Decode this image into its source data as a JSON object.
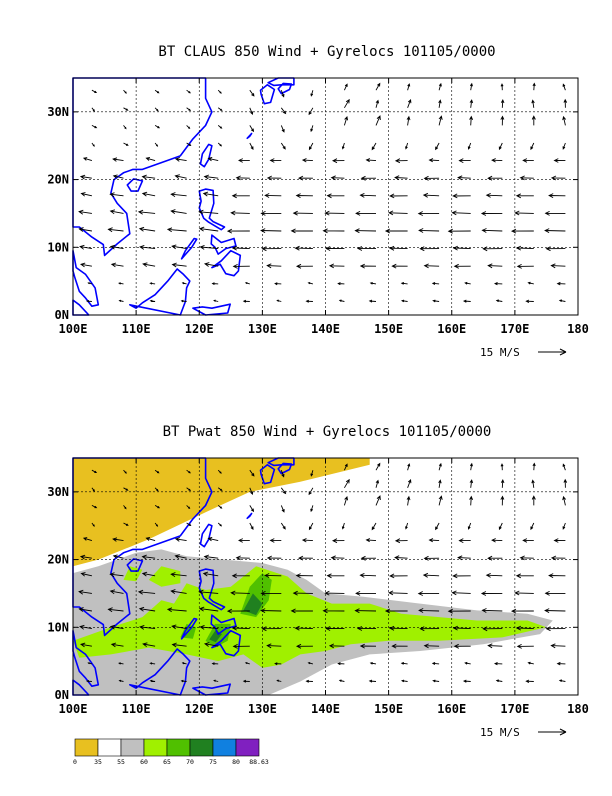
{
  "chart_data": [
    {
      "type": "vector_field_map",
      "title": "BT CLAUS 850 Wind + Gyrelocs 101105/0000",
      "x_ticks": [
        "100E",
        "110E",
        "120E",
        "130E",
        "140E",
        "150E",
        "160E",
        "170E",
        "180"
      ],
      "y_ticks": [
        "0N",
        "10N",
        "20N",
        "30N"
      ],
      "xlim": [
        100,
        180
      ],
      "ylim": [
        0,
        35
      ],
      "grid": true,
      "reference_vector": "15 M/S",
      "fill": "none"
    },
    {
      "type": "vector_field_map",
      "title": "BT Pwat 850 Wind + Gyrelocs 101105/0000",
      "x_ticks": [
        "100E",
        "110E",
        "120E",
        "130E",
        "140E",
        "150E",
        "160E",
        "170E",
        "180"
      ],
      "y_ticks": [
        "0N",
        "10N",
        "20N",
        "30N"
      ],
      "xlim": [
        100,
        180
      ],
      "ylim": [
        0,
        35
      ],
      "grid": true,
      "reference_vector": "15 M/S",
      "fill": "precipitable water",
      "colorbar": {
        "labels": [
          "0",
          "35",
          "55",
          "60",
          "65",
          "70",
          "75",
          "80",
          "88.63"
        ],
        "colors": [
          "#e8c020",
          "#ffffff",
          "#c0c0c0",
          "#a0f000",
          "#50c000",
          "#208020",
          "#1080e0",
          "#8020c0"
        ]
      }
    }
  ],
  "colors": {
    "coastline": "#0000ff",
    "dry": "#e8c020",
    "gray": "#c0c0c0",
    "lightgreen": "#a0f000",
    "green": "#50c000",
    "darkgreen": "#208020"
  }
}
